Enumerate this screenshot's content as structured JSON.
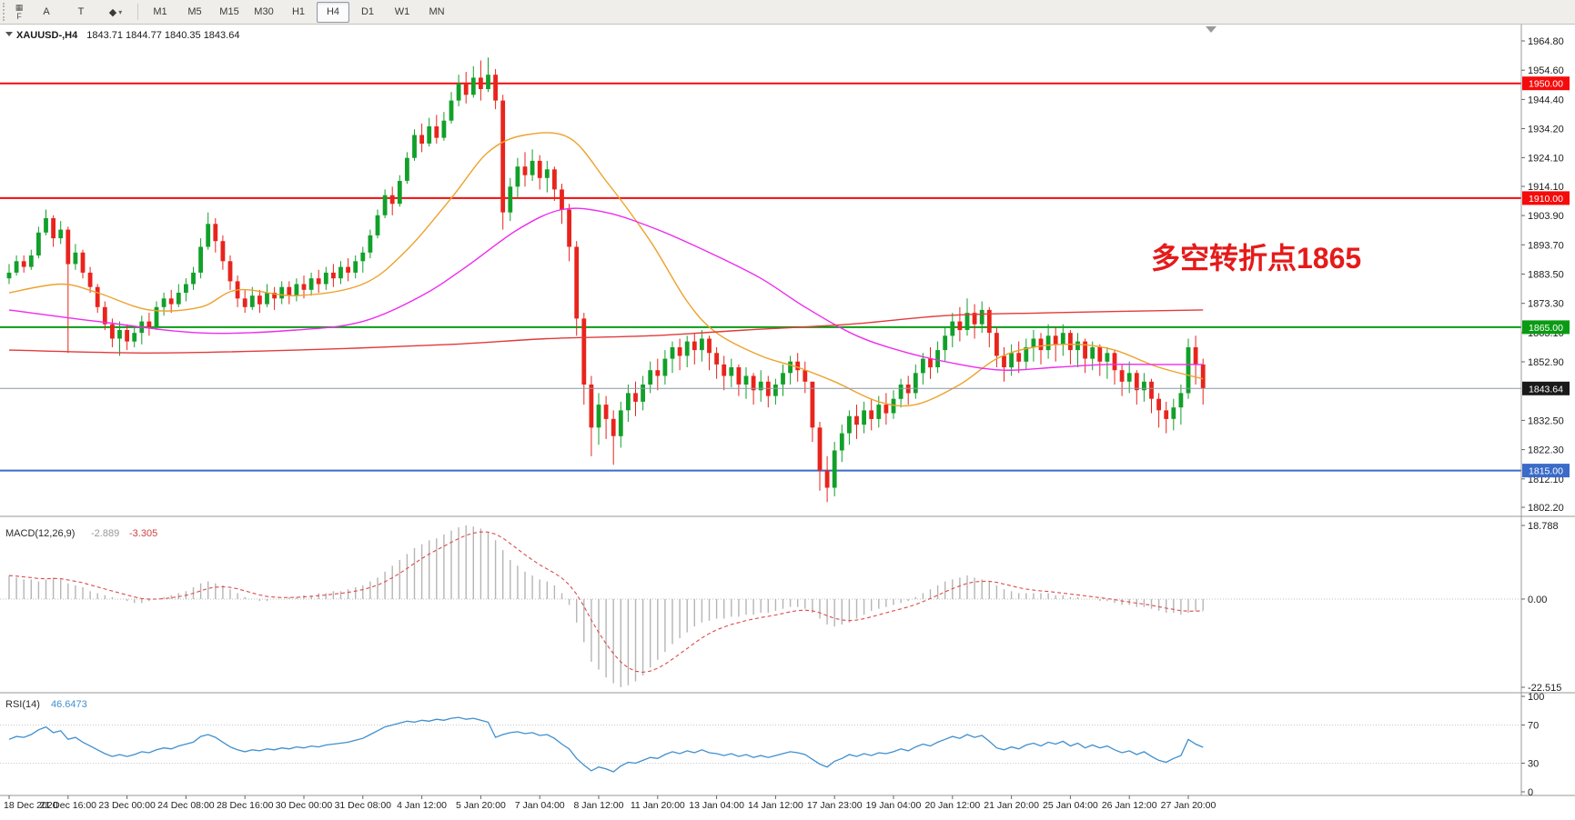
{
  "toolbar": {
    "icons": [
      {
        "name": "charts-grid-icon",
        "glyph": "▦"
      },
      {
        "name": "fast-nav-label",
        "glyph": "F"
      }
    ],
    "tools": [
      {
        "name": "cursor-tool",
        "label": "A",
        "dropdown": false
      },
      {
        "name": "text-tool",
        "label": "T",
        "dropdown": false
      },
      {
        "name": "shapes-tool",
        "label": "◆",
        "dropdown": true
      }
    ],
    "dropdown_glyph": "▾",
    "timeframes": [
      "M1",
      "M5",
      "M15",
      "M30",
      "H1",
      "H4",
      "D1",
      "W1",
      "MN"
    ],
    "active_timeframe": "H4"
  },
  "chart_header": {
    "marker": "▼",
    "symbol": "XAUUSD-,H4",
    "ohlc": "1843.71 1844.77 1840.35 1843.64"
  },
  "annotation": {
    "text": "多空转折点1865",
    "color": "#e51a1a"
  },
  "chart_data": {
    "type": "candlestick",
    "symbol": "XAUUSD-",
    "timeframe": "H4",
    "price_axis": {
      "max": 1964.8,
      "min": 1802.2,
      "ticks": [
        1964.8,
        1954.6,
        1944.4,
        1934.2,
        1924.1,
        1914.1,
        1903.9,
        1893.7,
        1883.5,
        1873.3,
        1863.1,
        1852.9,
        1832.5,
        1822.3,
        1812.1,
        1802.2
      ]
    },
    "horizontal_lines": [
      {
        "price": 1950.0,
        "label": "1950.00",
        "color": "#f50b0b",
        "badge_color": "#f50b0b",
        "width": 2,
        "current": false
      },
      {
        "price": 1910.0,
        "label": "1910.00",
        "color": "#f50b0b",
        "badge_color": "#f50b0b",
        "width": 2,
        "current": false
      },
      {
        "price": 1865.0,
        "label": "1865.00",
        "color": "#0a9b14",
        "badge_color": "#0a9b14",
        "width": 2,
        "current": false
      },
      {
        "price": 1815.0,
        "label": "1815.00",
        "color": "#3a6bc9",
        "badge_color": "#3a6bc9",
        "width": 2,
        "current": false
      },
      {
        "price": 1843.64,
        "label": "1843.64",
        "color": "#8a98a8",
        "badge_color": "#1a1a1a",
        "width": 1,
        "current": true
      }
    ],
    "candles": {
      "first_open": 1882,
      "highs": [
        1887,
        1890,
        1890,
        1892,
        1900,
        1906,
        1904,
        1902,
        1900,
        1894,
        1892,
        1886,
        1880,
        1874,
        1868,
        1867,
        1866,
        1865,
        1869,
        1870,
        1874,
        1877,
        1878,
        1880,
        1882,
        1886,
        1896,
        1905,
        1903,
        1897,
        1890,
        1883,
        1878,
        1879,
        1878,
        1880,
        1879,
        1881,
        1881,
        1882,
        1883,
        1884,
        1885,
        1886,
        1887,
        1888,
        1889,
        1890,
        1893,
        1899,
        1906,
        1913,
        1914,
        1918,
        1926,
        1934,
        1936,
        1938,
        1939,
        1940,
        1947,
        1953,
        1954,
        1956,
        1958,
        1959,
        1955,
        1946,
        1917,
        1924,
        1926,
        1927,
        1925,
        1923,
        1921,
        1915,
        1908,
        1895,
        1870,
        1848,
        1842,
        1841,
        1836,
        1839,
        1845,
        1846,
        1848,
        1853,
        1854,
        1857,
        1860,
        1861,
        1862,
        1863,
        1864,
        1862,
        1858,
        1855,
        1854,
        1852,
        1851,
        1849,
        1850,
        1848,
        1847,
        1852,
        1855,
        1856,
        1853,
        1845,
        1832,
        1820,
        1825,
        1831,
        1836,
        1838,
        1839,
        1840,
        1841,
        1842,
        1843,
        1847,
        1848,
        1852,
        1856,
        1858,
        1860,
        1865,
        1870,
        1872,
        1875,
        1873,
        1874,
        1872,
        1865,
        1858,
        1859,
        1860,
        1861,
        1864,
        1863,
        1866,
        1865,
        1866,
        1864,
        1863,
        1861,
        1860,
        1859,
        1858,
        1857,
        1852,
        1853,
        1850,
        1849,
        1847,
        1842,
        1839,
        1840,
        1845,
        1861,
        1862,
        1854
      ],
      "lows": [
        1880,
        1883,
        1884,
        1885,
        1889,
        1897,
        1893,
        1894,
        1856,
        1885,
        1882,
        1877,
        1870,
        1864,
        1858,
        1855,
        1857,
        1858,
        1859,
        1862,
        1864,
        1869,
        1870,
        1872,
        1874,
        1878,
        1882,
        1892,
        1891,
        1885,
        1878,
        1872,
        1870,
        1871,
        1870,
        1872,
        1871,
        1873,
        1873,
        1874,
        1875,
        1876,
        1877,
        1878,
        1879,
        1880,
        1881,
        1882,
        1884,
        1889,
        1896,
        1903,
        1904,
        1907,
        1915,
        1923,
        1926,
        1928,
        1929,
        1930,
        1936,
        1942,
        1943,
        1945,
        1944,
        1947,
        1941,
        1899,
        1902,
        1910,
        1914,
        1916,
        1913,
        1912,
        1909,
        1901,
        1888,
        1862,
        1838,
        1820,
        1824,
        1826,
        1817,
        1823,
        1832,
        1834,
        1836,
        1842,
        1843,
        1845,
        1849,
        1850,
        1851,
        1852,
        1853,
        1850,
        1847,
        1843,
        1844,
        1841,
        1840,
        1838,
        1839,
        1837,
        1838,
        1841,
        1845,
        1846,
        1842,
        1825,
        1808,
        1804,
        1806,
        1818,
        1824,
        1826,
        1828,
        1829,
        1830,
        1831,
        1833,
        1837,
        1838,
        1840,
        1845,
        1847,
        1849,
        1853,
        1858,
        1860,
        1862,
        1861,
        1863,
        1858,
        1851,
        1846,
        1848,
        1849,
        1850,
        1853,
        1852,
        1854,
        1853,
        1855,
        1852,
        1851,
        1849,
        1850,
        1848,
        1847,
        1845,
        1841,
        1842,
        1838,
        1839,
        1835,
        1830,
        1828,
        1829,
        1831,
        1840,
        1845,
        1838
      ],
      "closes": [
        1884,
        1888,
        1886,
        1890,
        1898,
        1903,
        1896,
        1899,
        1887,
        1891,
        1884,
        1879,
        1872,
        1866,
        1861,
        1864,
        1860,
        1863,
        1867,
        1865,
        1872,
        1875,
        1873,
        1877,
        1880,
        1884,
        1893,
        1901,
        1895,
        1888,
        1881,
        1875,
        1872,
        1876,
        1873,
        1877,
        1875,
        1879,
        1876,
        1880,
        1878,
        1882,
        1880,
        1884,
        1882,
        1886,
        1884,
        1888,
        1891,
        1897,
        1904,
        1911,
        1908,
        1916,
        1924,
        1932,
        1929,
        1935,
        1931,
        1937,
        1944,
        1950,
        1946,
        1952,
        1948,
        1953,
        1944,
        1905,
        1914,
        1921,
        1918,
        1923,
        1917,
        1920,
        1913,
        1906,
        1893,
        1868,
        1845,
        1830,
        1838,
        1833,
        1827,
        1836,
        1842,
        1839,
        1845,
        1850,
        1848,
        1854,
        1858,
        1855,
        1860,
        1857,
        1861,
        1856,
        1852,
        1848,
        1851,
        1845,
        1848,
        1843,
        1846,
        1841,
        1845,
        1849,
        1853,
        1850,
        1846,
        1830,
        1815,
        1809,
        1822,
        1828,
        1834,
        1831,
        1836,
        1833,
        1838,
        1835,
        1840,
        1845,
        1842,
        1849,
        1854,
        1851,
        1857,
        1862,
        1867,
        1864,
        1870,
        1866,
        1871,
        1863,
        1855,
        1851,
        1856,
        1853,
        1858,
        1861,
        1857,
        1862,
        1859,
        1863,
        1857,
        1860,
        1854,
        1858,
        1853,
        1856,
        1850,
        1846,
        1849,
        1843,
        1846,
        1840,
        1836,
        1833,
        1837,
        1842,
        1858,
        1852,
        1843.64
      ],
      "up_color": "#12a02a",
      "down_color": "#e8241c"
    },
    "moving_averages": [
      {
        "name": "ma-orange",
        "color": "#eda22b",
        "points": [
          [
            0,
            1877
          ],
          [
            7,
            1880
          ],
          [
            12,
            1877
          ],
          [
            19,
            1871
          ],
          [
            26,
            1872
          ],
          [
            31,
            1878
          ],
          [
            39,
            1876
          ],
          [
            48,
            1880
          ],
          [
            54,
            1892
          ],
          [
            60,
            1910
          ],
          [
            65,
            1926
          ],
          [
            70,
            1932
          ],
          [
            76,
            1931
          ],
          [
            81,
            1916
          ],
          [
            87,
            1895
          ],
          [
            92,
            1874
          ],
          [
            96,
            1863
          ],
          [
            102,
            1855
          ],
          [
            107,
            1851
          ],
          [
            112,
            1846
          ],
          [
            118,
            1839
          ],
          [
            123,
            1838
          ],
          [
            129,
            1845
          ],
          [
            134,
            1854
          ],
          [
            139,
            1858
          ],
          [
            145,
            1859
          ],
          [
            150,
            1857
          ],
          [
            156,
            1851
          ],
          [
            162,
            1847
          ]
        ]
      },
      {
        "name": "ma-magenta",
        "color": "#ee2bee",
        "points": [
          [
            0,
            1871
          ],
          [
            12,
            1867
          ],
          [
            26,
            1863
          ],
          [
            39,
            1864
          ],
          [
            48,
            1867
          ],
          [
            56,
            1876
          ],
          [
            62,
            1886
          ],
          [
            69,
            1899
          ],
          [
            75,
            1906
          ],
          [
            81,
            1905
          ],
          [
            88,
            1899
          ],
          [
            95,
            1891
          ],
          [
            102,
            1882
          ],
          [
            108,
            1872
          ],
          [
            115,
            1862
          ],
          [
            122,
            1856
          ],
          [
            129,
            1852
          ],
          [
            135,
            1850
          ],
          [
            142,
            1851
          ],
          [
            149,
            1852
          ],
          [
            156,
            1852
          ],
          [
            162,
            1852
          ]
        ]
      },
      {
        "name": "ma-red",
        "color": "#e23b3b",
        "points": [
          [
            0,
            1857
          ],
          [
            19,
            1856
          ],
          [
            39,
            1857
          ],
          [
            60,
            1859
          ],
          [
            73,
            1861
          ],
          [
            87,
            1862
          ],
          [
            100,
            1864
          ],
          [
            114,
            1866
          ],
          [
            127,
            1869
          ],
          [
            141,
            1870
          ],
          [
            162,
            1871
          ]
        ]
      }
    ],
    "macd": {
      "label": "MACD(12,26,9)",
      "value": "-2.889",
      "signal": "-3.305",
      "axis_labels": [
        "18.788",
        "0.00",
        "-22.515"
      ],
      "axis_max": 18.788,
      "axis_min": -22.515,
      "histogram_color": "#b5b5b5",
      "signal_color": "#dd4a4a",
      "histogram": [
        6,
        5.5,
        5,
        5,
        4.5,
        5,
        5.5,
        5,
        4,
        3.5,
        3,
        2,
        1.5,
        1,
        0.5,
        0,
        -0.5,
        -1,
        -1,
        -0.5,
        0,
        0.5,
        1,
        1.5,
        2,
        3,
        4,
        4.5,
        4,
        3.5,
        2.5,
        1.5,
        0.5,
        0,
        -0.5,
        -0.5,
        0,
        0,
        0.5,
        0.5,
        1,
        1,
        1.5,
        1.5,
        2,
        2,
        2.5,
        3,
        3.5,
        4.5,
        5.5,
        7,
        8.5,
        10,
        11.5,
        13,
        14,
        15,
        15.5,
        16.5,
        17.5,
        18.3,
        18.8,
        18.5,
        18,
        17,
        15,
        12.5,
        10,
        8.5,
        7,
        6,
        5,
        4.5,
        3.5,
        1.5,
        -1.5,
        -6,
        -11,
        -16,
        -18,
        -20,
        -21.5,
        -22.5,
        -22,
        -21,
        -19.5,
        -17.5,
        -15.5,
        -13.5,
        -11.5,
        -10,
        -8.5,
        -7,
        -6,
        -5.5,
        -5,
        -5,
        -4.5,
        -4.5,
        -4,
        -4,
        -3.5,
        -3.5,
        -3,
        -2.5,
        -2,
        -2,
        -2.5,
        -3.5,
        -5,
        -6.5,
        -7,
        -6.5,
        -6,
        -5,
        -4,
        -3,
        -2.5,
        -2,
        -1.5,
        -1,
        -0.5,
        0.5,
        1.5,
        2.5,
        3.5,
        4.5,
        5,
        5.5,
        6,
        5.5,
        5,
        4.5,
        3.5,
        2.5,
        2,
        1.5,
        1.5,
        1.5,
        1.5,
        1.5,
        1,
        1,
        0.5,
        0.5,
        0,
        0,
        -0.5,
        -0.5,
        -1,
        -1.5,
        -1.5,
        -2,
        -2,
        -2.5,
        -3,
        -3.5,
        -3.5,
        -4,
        -3.5,
        -3,
        -2.889
      ]
    },
    "rsi": {
      "label": "RSI(14)",
      "value": "46.6473",
      "color": "#3f8fce",
      "levels": [
        100,
        70,
        30,
        0
      ],
      "values": [
        55,
        58,
        57,
        60,
        65,
        68,
        62,
        64,
        55,
        57,
        52,
        48,
        44,
        40,
        37,
        39,
        37,
        39,
        42,
        41,
        44,
        46,
        45,
        48,
        50,
        52,
        58,
        60,
        57,
        52,
        47,
        44,
        42,
        44,
        43,
        45,
        44,
        46,
        45,
        47,
        46,
        48,
        47,
        49,
        50,
        51,
        52,
        54,
        56,
        60,
        64,
        68,
        70,
        72,
        74,
        73,
        75,
        74,
        76,
        75,
        77,
        78,
        76,
        77,
        75,
        73,
        57,
        60,
        62,
        63,
        61,
        62,
        59,
        60,
        56,
        50,
        45,
        35,
        28,
        22,
        26,
        24,
        21,
        27,
        31,
        30,
        33,
        36,
        35,
        39,
        42,
        40,
        43,
        41,
        44,
        41,
        40,
        38,
        40,
        37,
        39,
        36,
        38,
        36,
        38,
        40,
        42,
        41,
        39,
        34,
        29,
        26,
        32,
        35,
        39,
        37,
        40,
        38,
        41,
        40,
        42,
        45,
        43,
        47,
        50,
        48,
        52,
        55,
        58,
        56,
        60,
        57,
        59,
        53,
        46,
        44,
        47,
        45,
        49,
        51,
        48,
        52,
        50,
        53,
        48,
        51,
        46,
        49,
        46,
        48,
        44,
        41,
        43,
        39,
        42,
        37,
        33,
        31,
        35,
        38,
        55,
        50,
        46.6473
      ]
    },
    "time_labels": [
      "18 Dec 2020",
      "21 Dec 16:00",
      "23 Dec 00:00",
      "24 Dec 08:00",
      "28 Dec 16:00",
      "30 Dec 00:00",
      "31 Dec 08:00",
      "4 Jan 12:00",
      "5 Jan 20:00",
      "7 Jan 04:00",
      "8 Jan 12:00",
      "11 Jan 20:00",
      "13 Jan 04:00",
      "14 Jan 12:00",
      "17 Jan 23:00",
      "19 Jan 04:00",
      "20 Jan 12:00",
      "21 Jan 20:00",
      "25 Jan 04:00",
      "26 Jan 12:00",
      "27 Jan 20:00"
    ],
    "bars_per_label": 8
  }
}
